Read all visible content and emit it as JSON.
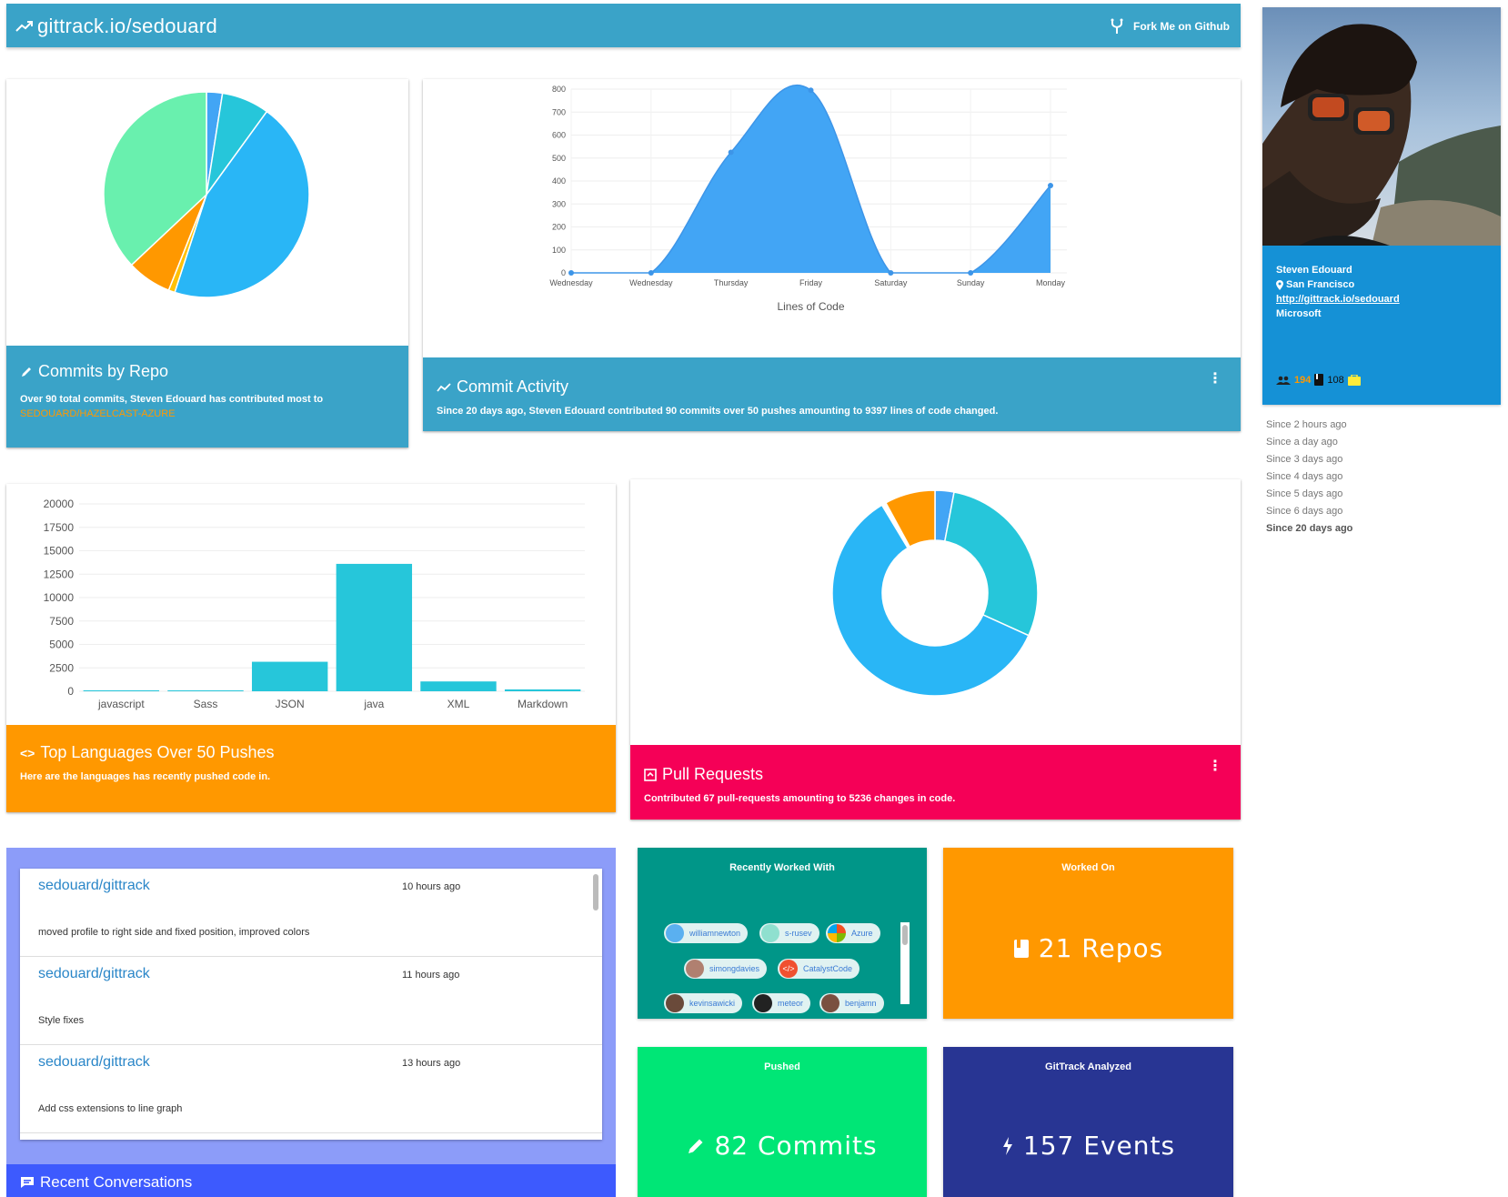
{
  "header": {
    "brand": "gittrack.io/sedouard",
    "fork_label": "Fork Me on Github"
  },
  "profile": {
    "name": "Steven Edouard",
    "location": "San Francisco",
    "url": "http://gittrack.io/sedouard",
    "company": "Microsoft",
    "followers": "194",
    "repos": "108"
  },
  "since_filters": [
    "Since 2 hours ago",
    "Since a day ago",
    "Since 3 days ago",
    "Since 4 days ago",
    "Since 5 days ago",
    "Since 6 days ago",
    "Since 20 days ago"
  ],
  "commits_by_repo": {
    "title": "Commits by Repo",
    "desc": "Over 90 total commits, Steven Edouard has contributed most to",
    "highlight": "SEDOUARD/HAZELCAST-AZURE"
  },
  "commit_activity": {
    "title": "Commit Activity",
    "desc": "Since 20 days ago, Steven Edouard contributed 90 commits over 50 pushes amounting to 9397 lines of code changed.",
    "menu": "⋮"
  },
  "top_languages": {
    "title": "Top Languages Over 50 Pushes",
    "desc": "Here are the languages has recently pushed code in."
  },
  "pull_requests": {
    "title": "Pull Requests",
    "desc": "Contributed 67 pull-requests amounting to 5236 changes in code.",
    "menu": "⋮"
  },
  "recent_commits": [
    {
      "repo": "sedouard/gittrack",
      "time": "10 hours ago",
      "msg": "moved profile to right side and fixed position, improved colors"
    },
    {
      "repo": "sedouard/gittrack",
      "time": "11 hours ago",
      "msg": "Style fixes"
    },
    {
      "repo": "sedouard/gittrack",
      "time": "13 hours ago",
      "msg": "Add css extensions to line graph"
    }
  ],
  "recent_conversations": {
    "title": "Recent Conversations"
  },
  "tiles": {
    "recently_worked_with": {
      "title": "Recently Worked With",
      "chips": [
        "williamnewton",
        "s-rusev",
        "Azure",
        "simongdavies",
        "CatalystCode",
        "kevinsawicki",
        "meteor",
        "benjamn"
      ]
    },
    "worked_on": {
      "title": "Worked On",
      "value": "21 Repos"
    },
    "pushed": {
      "title": "Pushed",
      "value": "82 Commits"
    },
    "analyzed": {
      "title": "GitTrack Analyzed",
      "value": "157 Events"
    }
  },
  "colors": {
    "header": "#3aa3c8",
    "profile": "#1591d6",
    "orange": "#ff9800",
    "pink": "#f50057",
    "teal": "#009688",
    "green": "#00e676",
    "indigo": "#283593",
    "conv_bg": "#8c9cf9",
    "conv_footer": "#3d5afe",
    "link_orange": "#ff9800"
  },
  "chart_data": [
    {
      "type": "pie",
      "name": "Commits by Repo",
      "slices": [
        {
          "value": 2.5,
          "color": "#42a5f5"
        },
        {
          "value": 7.5,
          "color": "#26c6da"
        },
        {
          "value": 45,
          "color": "#29b6f6"
        },
        {
          "value": 1,
          "color": "#ffc107"
        },
        {
          "value": 7,
          "color": "#ff9800"
        },
        {
          "value": 37,
          "color": "#69f0ae"
        }
      ]
    },
    {
      "type": "area",
      "name": "Commit Activity",
      "xlabel": "Lines of Code",
      "categories": [
        "Wednesday",
        "Wednesday",
        "Thursday",
        "Friday",
        "Saturday",
        "Sunday",
        "Monday"
      ],
      "values": [
        0,
        0,
        525,
        795,
        0,
        0,
        380
      ],
      "ylim": [
        0,
        800
      ],
      "yticks": [
        0,
        100,
        200,
        300,
        400,
        500,
        600,
        700,
        800
      ]
    },
    {
      "type": "bar",
      "name": "Top Languages",
      "categories": [
        "javascript",
        "Sass",
        "JSON",
        "java",
        "XML",
        "Markdown"
      ],
      "values": [
        100,
        50,
        3150,
        13600,
        1050,
        200
      ],
      "ylim": [
        0,
        20000
      ],
      "yticks": [
        0,
        2500,
        5000,
        7500,
        10000,
        12500,
        15000,
        17500,
        20000
      ]
    },
    {
      "type": "pie",
      "name": "Pull Requests",
      "donut": true,
      "slices": [
        {
          "value": 3,
          "color": "#42a5f5"
        },
        {
          "value": 29,
          "color": "#26c6da"
        },
        {
          "value": 60,
          "color": "#29b6f6"
        },
        {
          "value": 0.7,
          "color": "#ffffff"
        },
        {
          "value": 8,
          "color": "#ff9800"
        }
      ]
    }
  ]
}
